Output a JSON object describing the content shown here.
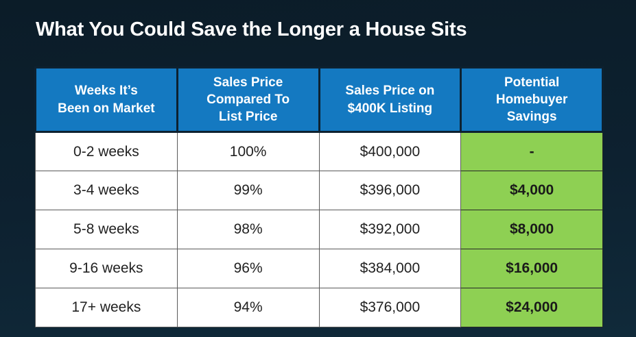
{
  "title": "What You Could Save the Longer a House Sits",
  "colors": {
    "background_top": "#0b1c28",
    "background_bottom": "#102a3a",
    "header_blue": "#1479c1",
    "savings_green": "#8ed053",
    "cell_white": "#ffffff",
    "header_text": "#ffffff",
    "cell_text": "#212121"
  },
  "table": {
    "headers": [
      {
        "lines": [
          "Weeks It’s",
          "Been on Market"
        ]
      },
      {
        "lines": [
          "Sales Price",
          "Compared To",
          "List Price"
        ]
      },
      {
        "lines": [
          "Sales Price on",
          "$400K Listing"
        ]
      },
      {
        "lines": [
          "Potential",
          "Homebuyer",
          "Savings"
        ]
      }
    ],
    "rows": [
      [
        "0-2 weeks",
        "100%",
        "$400,000",
        "-"
      ],
      [
        "3-4 weeks",
        "99%",
        "$396,000",
        "$4,000"
      ],
      [
        "5-8 weeks",
        "98%",
        "$392,000",
        "$8,000"
      ],
      [
        "9-16 weeks",
        "96%",
        "$384,000",
        "$16,000"
      ],
      [
        "17+ weeks",
        "94%",
        "$376,000",
        "$24,000"
      ]
    ]
  },
  "chart_data": {
    "type": "table",
    "title": "What You Could Save the Longer a House Sits",
    "columns": [
      "Weeks It’s Been on Market",
      "Sales Price Compared To List Price",
      "Sales Price on $400K Listing",
      "Potential Homebuyer Savings"
    ],
    "categories": [
      "0-2 weeks",
      "3-4 weeks",
      "5-8 weeks",
      "9-16 weeks",
      "17+ weeks"
    ],
    "rows": [
      [
        "0-2 weeks",
        "100%",
        "$400,000",
        "-"
      ],
      [
        "3-4 weeks",
        "99%",
        "$396,000",
        "$4,000"
      ],
      [
        "5-8 weeks",
        "98%",
        "$392,000",
        "$8,000"
      ],
      [
        "9-16 weeks",
        "96%",
        "$384,000",
        "$16,000"
      ],
      [
        "17+ weeks",
        "94%",
        "$376,000",
        "$24,000"
      ]
    ],
    "series": [
      {
        "name": "Sales Price Compared To List Price (%)",
        "values": [
          100,
          99,
          98,
          96,
          94
        ]
      },
      {
        "name": "Sales Price on $400K Listing ($)",
        "values": [
          400000,
          396000,
          392000,
          384000,
          376000
        ]
      },
      {
        "name": "Potential Homebuyer Savings ($)",
        "values": [
          0,
          4000,
          8000,
          16000,
          24000
        ]
      }
    ]
  }
}
